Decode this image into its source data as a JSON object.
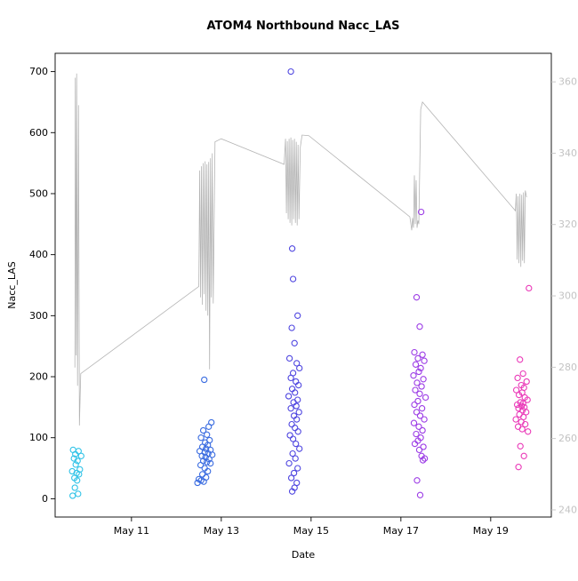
{
  "chart_data": {
    "type": "scatter",
    "title": "ATOM4 Northbound Nacc_LAS",
    "xlabel": "Date",
    "ylabel": "Nacc_LAS",
    "x_range": [
      9.3,
      20.35
    ],
    "x_ticks": [
      {
        "value": 11,
        "label": "May 11"
      },
      {
        "value": 13,
        "label": "May 13"
      },
      {
        "value": 15,
        "label": "May 15"
      },
      {
        "value": 17,
        "label": "May 17"
      },
      {
        "value": 19,
        "label": "May 19"
      }
    ],
    "y_left": {
      "range": [
        -30,
        730
      ],
      "ticks": [
        0,
        100,
        200,
        300,
        400,
        500,
        600,
        700
      ],
      "tick_color": "#000000"
    },
    "y_right": {
      "range": [
        238,
        368
      ],
      "ticks": [
        240,
        260,
        280,
        300,
        320,
        340,
        360
      ],
      "tick_color": "#c3c3c3"
    },
    "grid": false,
    "legend": "none",
    "line_series": {
      "name": "gray-trace",
      "color": "#b4b4b4",
      "points": [
        [
          9.74,
          215
        ],
        [
          9.75,
          690
        ],
        [
          9.77,
          235
        ],
        [
          9.78,
          697
        ],
        [
          9.8,
          185
        ],
        [
          9.82,
          645
        ],
        [
          9.84,
          120
        ],
        [
          9.87,
          205
        ],
        [
          12.5,
          348
        ],
        [
          12.52,
          538
        ],
        [
          12.54,
          330
        ],
        [
          12.56,
          545
        ],
        [
          12.58,
          318
        ],
        [
          12.6,
          550
        ],
        [
          12.62,
          335
        ],
        [
          12.64,
          553
        ],
        [
          12.66,
          308
        ],
        [
          12.68,
          548
        ],
        [
          12.7,
          300
        ],
        [
          12.72,
          552
        ],
        [
          12.74,
          212
        ],
        [
          12.76,
          558
        ],
        [
          12.78,
          330
        ],
        [
          12.8,
          566
        ],
        [
          12.82,
          320
        ],
        [
          12.86,
          585
        ],
        [
          13.0,
          590
        ],
        [
          14.4,
          548
        ],
        [
          14.43,
          590
        ],
        [
          14.45,
          468
        ],
        [
          14.47,
          586
        ],
        [
          14.49,
          458
        ],
        [
          14.51,
          590
        ],
        [
          14.53,
          452
        ],
        [
          14.55,
          592
        ],
        [
          14.57,
          448
        ],
        [
          14.59,
          588
        ],
        [
          14.61,
          458
        ],
        [
          14.63,
          590
        ],
        [
          14.65,
          452
        ],
        [
          14.67,
          585
        ],
        [
          14.69,
          448
        ],
        [
          14.71,
          580
        ],
        [
          14.73,
          458
        ],
        [
          14.76,
          576
        ],
        [
          14.8,
          596
        ],
        [
          14.95,
          595
        ],
        [
          17.2,
          462
        ],
        [
          17.22,
          452
        ],
        [
          17.24,
          440
        ],
        [
          17.26,
          460
        ],
        [
          17.28,
          444
        ],
        [
          17.3,
          530
        ],
        [
          17.32,
          450
        ],
        [
          17.34,
          522
        ],
        [
          17.36,
          444
        ],
        [
          17.38,
          456
        ],
        [
          17.4,
          450
        ],
        [
          17.44,
          638
        ],
        [
          17.48,
          650
        ],
        [
          19.55,
          472
        ],
        [
          19.57,
          500
        ],
        [
          19.59,
          392
        ],
        [
          19.61,
          496
        ],
        [
          19.63,
          386
        ],
        [
          19.65,
          500
        ],
        [
          19.67,
          380
        ],
        [
          19.69,
          498
        ],
        [
          19.71,
          390
        ],
        [
          19.73,
          502
        ],
        [
          19.75,
          386
        ],
        [
          19.77,
          505
        ],
        [
          19.8,
          494
        ]
      ]
    },
    "clusters": [
      {
        "name": "may-10-group",
        "color": "#31c3e7",
        "points": [
          [
            9.7,
            80
          ],
          [
            9.82,
            78
          ],
          [
            9.75,
            73
          ],
          [
            9.88,
            70
          ],
          [
            9.72,
            66
          ],
          [
            9.8,
            62
          ],
          [
            9.76,
            56
          ],
          [
            9.85,
            48
          ],
          [
            9.68,
            45
          ],
          [
            9.78,
            42
          ],
          [
            9.83,
            40
          ],
          [
            9.73,
            34
          ],
          [
            9.79,
            30
          ],
          [
            9.74,
            18
          ],
          [
            9.81,
            8
          ],
          [
            9.69,
            5
          ]
        ]
      },
      {
        "name": "may-13-group",
        "color": "#3a6ce0",
        "points": [
          [
            12.62,
            195
          ],
          [
            12.78,
            125
          ],
          [
            12.72,
            118
          ],
          [
            12.6,
            112
          ],
          [
            12.68,
            105
          ],
          [
            12.55,
            100
          ],
          [
            12.74,
            96
          ],
          [
            12.64,
            92
          ],
          [
            12.7,
            88
          ],
          [
            12.58,
            85
          ],
          [
            12.66,
            82
          ],
          [
            12.76,
            80
          ],
          [
            12.52,
            78
          ],
          [
            12.63,
            76
          ],
          [
            12.71,
            74
          ],
          [
            12.8,
            72
          ],
          [
            12.57,
            70
          ],
          [
            12.65,
            68
          ],
          [
            12.73,
            65
          ],
          [
            12.6,
            62
          ],
          [
            12.68,
            60
          ],
          [
            12.76,
            58
          ],
          [
            12.54,
            55
          ],
          [
            12.63,
            50
          ],
          [
            12.7,
            45
          ],
          [
            12.58,
            40
          ],
          [
            12.66,
            35
          ],
          [
            12.5,
            32
          ],
          [
            12.55,
            30
          ],
          [
            12.61,
            28
          ],
          [
            12.47,
            26
          ]
        ]
      },
      {
        "name": "may-15-group",
        "color": "#4f46e0",
        "points": [
          [
            14.55,
            700
          ],
          [
            14.58,
            410
          ],
          [
            14.6,
            360
          ],
          [
            14.7,
            300
          ],
          [
            14.57,
            280
          ],
          [
            14.63,
            255
          ],
          [
            14.52,
            230
          ],
          [
            14.68,
            222
          ],
          [
            14.74,
            214
          ],
          [
            14.6,
            206
          ],
          [
            14.55,
            198
          ],
          [
            14.66,
            192
          ],
          [
            14.72,
            186
          ],
          [
            14.58,
            180
          ],
          [
            14.64,
            174
          ],
          [
            14.5,
            168
          ],
          [
            14.7,
            162
          ],
          [
            14.61,
            158
          ],
          [
            14.67,
            152
          ],
          [
            14.55,
            148
          ],
          [
            14.73,
            142
          ],
          [
            14.62,
            136
          ],
          [
            14.68,
            130
          ],
          [
            14.57,
            122
          ],
          [
            14.64,
            116
          ],
          [
            14.71,
            110
          ],
          [
            14.53,
            104
          ],
          [
            14.6,
            98
          ],
          [
            14.66,
            90
          ],
          [
            14.74,
            82
          ],
          [
            14.59,
            74
          ],
          [
            14.65,
            66
          ],
          [
            14.51,
            58
          ],
          [
            14.7,
            50
          ],
          [
            14.62,
            42
          ],
          [
            14.56,
            34
          ],
          [
            14.68,
            26
          ],
          [
            14.63,
            18
          ],
          [
            14.58,
            12
          ]
        ]
      },
      {
        "name": "may-17-group",
        "color": "#9c3ce6",
        "points": [
          [
            17.45,
            470
          ],
          [
            17.35,
            330
          ],
          [
            17.42,
            282
          ],
          [
            17.3,
            240
          ],
          [
            17.48,
            236
          ],
          [
            17.38,
            230
          ],
          [
            17.52,
            226
          ],
          [
            17.33,
            220
          ],
          [
            17.44,
            214
          ],
          [
            17.4,
            208
          ],
          [
            17.28,
            202
          ],
          [
            17.5,
            196
          ],
          [
            17.36,
            190
          ],
          [
            17.46,
            184
          ],
          [
            17.32,
            178
          ],
          [
            17.42,
            172
          ],
          [
            17.55,
            166
          ],
          [
            17.38,
            160
          ],
          [
            17.3,
            154
          ],
          [
            17.47,
            148
          ],
          [
            17.35,
            142
          ],
          [
            17.43,
            136
          ],
          [
            17.52,
            130
          ],
          [
            17.29,
            124
          ],
          [
            17.4,
            118
          ],
          [
            17.48,
            112
          ],
          [
            17.34,
            106
          ],
          [
            17.44,
            100
          ],
          [
            17.38,
            95
          ],
          [
            17.31,
            90
          ],
          [
            17.5,
            85
          ],
          [
            17.41,
            80
          ],
          [
            17.46,
            70
          ],
          [
            17.53,
            66
          ],
          [
            17.49,
            63
          ],
          [
            17.36,
            30
          ],
          [
            17.43,
            6
          ]
        ]
      },
      {
        "name": "may-19-group",
        "color": "#ea39b8",
        "points": [
          [
            19.85,
            345
          ],
          [
            19.65,
            228
          ],
          [
            19.72,
            205
          ],
          [
            19.6,
            198
          ],
          [
            19.8,
            192
          ],
          [
            19.68,
            186
          ],
          [
            19.74,
            182
          ],
          [
            19.57,
            178
          ],
          [
            19.7,
            174
          ],
          [
            19.63,
            170
          ],
          [
            19.76,
            166
          ],
          [
            19.82,
            162
          ],
          [
            19.66,
            158
          ],
          [
            19.72,
            156
          ],
          [
            19.59,
            154
          ],
          [
            19.69,
            152
          ],
          [
            19.75,
            150
          ],
          [
            19.62,
            148
          ],
          [
            19.71,
            145
          ],
          [
            19.79,
            142
          ],
          [
            19.64,
            138
          ],
          [
            19.73,
            134
          ],
          [
            19.56,
            130
          ],
          [
            19.68,
            126
          ],
          [
            19.77,
            122
          ],
          [
            19.61,
            118
          ],
          [
            19.7,
            114
          ],
          [
            19.83,
            110
          ],
          [
            19.66,
            86
          ],
          [
            19.74,
            70
          ],
          [
            19.62,
            52
          ]
        ]
      }
    ],
    "styles": {
      "box_color": "#000000",
      "point_radius": 3.1,
      "point_stroke_width": 1.1,
      "title_color": "#000000",
      "axis_label_color": "#000000"
    }
  }
}
